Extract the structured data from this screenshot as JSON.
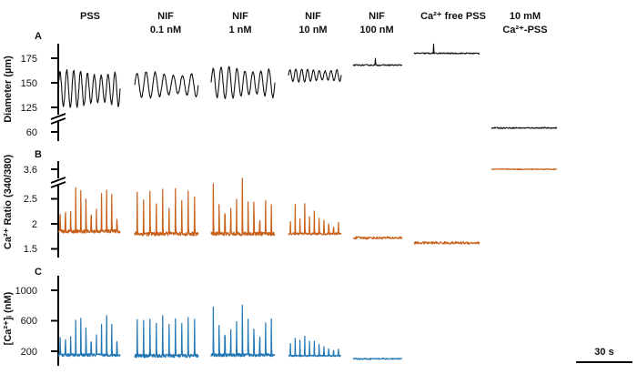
{
  "chart_data": {
    "type": "line",
    "conditions": [
      {
        "line1": "PSS",
        "line2": ""
      },
      {
        "line1": "NIF",
        "line2": "0.1 nM"
      },
      {
        "line1": "NIF",
        "line2": "1 nM"
      },
      {
        "line1": "NIF",
        "line2": "10 nM"
      },
      {
        "line1": "NIF",
        "line2": "100 nM"
      },
      {
        "line1": "Ca²⁺ free PSS",
        "line2": ""
      },
      {
        "line1": "10 mM",
        "line2": "Ca²⁺-PSS"
      }
    ],
    "scale_bar_label": "30 s",
    "colors": {
      "diameter": "#111111",
      "ratio": "#c8601a",
      "calcium": "#2277b5"
    },
    "panels": [
      {
        "label": "A",
        "ylabel": "Diameter (µm)",
        "ticks": [
          "175",
          "150",
          "125",
          "60"
        ],
        "tick_values": [
          175,
          150,
          125,
          60
        ],
        "axis_break": true,
        "traces": [
          {
            "condition": "PSS",
            "pattern": "oscillation",
            "min": 125,
            "max": 163,
            "cycles": 9
          },
          {
            "condition": "NIF 0.1 nM",
            "pattern": "oscillation",
            "min": 135,
            "max": 161,
            "cycles": 7
          },
          {
            "condition": "NIF 1 nM",
            "pattern": "oscillation",
            "min": 134,
            "max": 166,
            "cycles": 8
          },
          {
            "condition": "NIF 10 nM",
            "pattern": "oscillation",
            "min": 151,
            "max": 164,
            "cycles": 9
          },
          {
            "condition": "NIF 100 nM",
            "pattern": "flat",
            "level": 168
          },
          {
            "condition": "Ca²⁺ free PSS",
            "pattern": "flat",
            "level": 180
          },
          {
            "condition": "10 mM Ca²⁺-PSS",
            "pattern": "flat",
            "level": 64
          }
        ]
      },
      {
        "label": "B",
        "ylabel": "Ca²⁺ Ratio (340/380)",
        "ticks": [
          "3.6",
          "2.5",
          "2",
          "1.5"
        ],
        "tick_values": [
          3.6,
          2.5,
          2.0,
          1.5
        ],
        "axis_break": true,
        "traces": [
          {
            "condition": "PSS",
            "pattern": "spikes",
            "base": 1.85,
            "peak": 3.0,
            "count": 12
          },
          {
            "condition": "NIF 0.1 nM",
            "pattern": "spikes",
            "base": 1.8,
            "peak": 3.1,
            "count": 10
          },
          {
            "condition": "NIF 1 nM",
            "pattern": "spikes",
            "base": 1.8,
            "peak": 3.0,
            "count": 11
          },
          {
            "condition": "NIF 10 nM",
            "pattern": "spikes",
            "base": 1.8,
            "peak": 2.5,
            "count": 11
          },
          {
            "condition": "NIF 100 nM",
            "pattern": "flat",
            "level": 1.72
          },
          {
            "condition": "Ca²⁺ free PSS",
            "pattern": "flat",
            "level": 1.62
          },
          {
            "condition": "10 mM Ca²⁺-PSS",
            "pattern": "flat",
            "level": 3.6
          }
        ]
      },
      {
        "label": "C",
        "ylabel": "[Ca²⁺]ᵢ (nM)",
        "ticks": [
          "1000",
          "600",
          "200"
        ],
        "tick_values": [
          1000,
          600,
          200
        ],
        "axis_break": false,
        "traces": [
          {
            "condition": "PSS",
            "pattern": "spikes",
            "base": 150,
            "peak": 750,
            "count": 12
          },
          {
            "condition": "NIF 0.1 nM",
            "pattern": "spikes",
            "base": 140,
            "peak": 880,
            "count": 10
          },
          {
            "condition": "NIF 1 nM",
            "pattern": "spikes",
            "base": 150,
            "peak": 850,
            "count": 11
          },
          {
            "condition": "NIF 10 nM",
            "pattern": "spikes",
            "base": 140,
            "peak": 420,
            "count": 11
          },
          {
            "condition": "NIF 100 nM",
            "pattern": "flat",
            "level": 100
          }
        ]
      }
    ]
  }
}
